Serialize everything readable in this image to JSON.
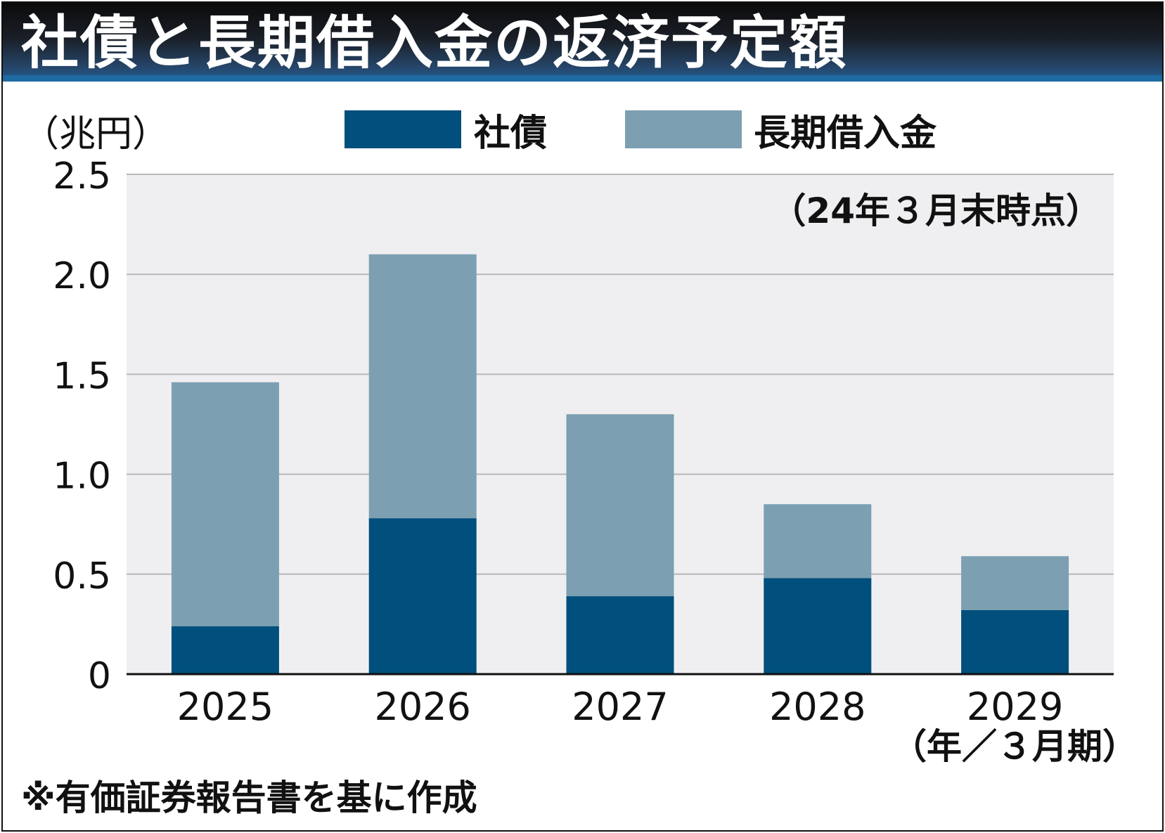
{
  "title": "社債と長期借入金の返済予定額",
  "unit_label": "（兆円）",
  "as_of_note": "（24年３月末時点）",
  "x_unit_label": "（年／３月期）",
  "source_note": "※有価証券報告書を基に作成",
  "colors": {
    "bonds": "#004f7c",
    "loans": "#7c9fb2",
    "plot_bg": "#efeff2",
    "grid": "#b8b8bc"
  },
  "chart_data": {
    "type": "bar",
    "stacked": true,
    "categories": [
      "2025",
      "2026",
      "2027",
      "2028",
      "2029"
    ],
    "series": [
      {
        "name": "社債",
        "values": [
          0.24,
          0.78,
          0.39,
          0.48,
          0.32
        ]
      },
      {
        "name": "長期借入金",
        "values": [
          1.22,
          1.32,
          0.91,
          0.37,
          0.27
        ]
      }
    ],
    "ylim": [
      0,
      2.5
    ],
    "yticks": [
      0,
      0.5,
      1.0,
      1.5,
      2.0,
      2.5
    ],
    "ytick_labels": [
      "0",
      "0.5",
      "1.0",
      "1.5",
      "2.0",
      "2.5"
    ],
    "ylabel": "（兆円）",
    "xlabel": "（年／３月期）",
    "legend_position": "top-center",
    "grid": true
  }
}
